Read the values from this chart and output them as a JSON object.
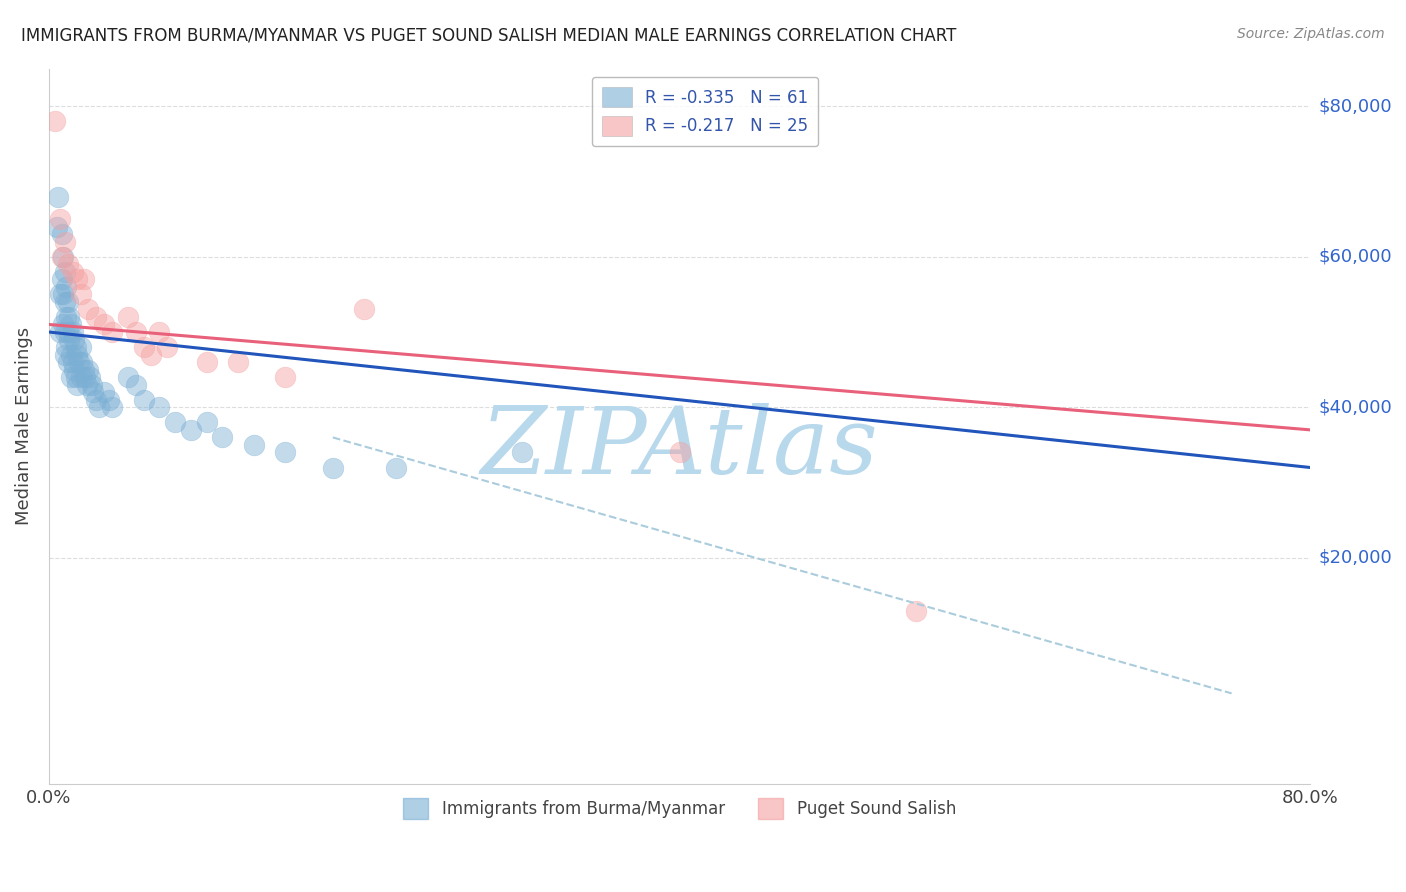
{
  "title": "IMMIGRANTS FROM BURMA/MYANMAR VS PUGET SOUND SALISH MEDIAN MALE EARNINGS CORRELATION CHART",
  "source": "Source: ZipAtlas.com",
  "ylabel": "Median Male Earnings",
  "y_tick_labels": [
    "$20,000",
    "$40,000",
    "$60,000",
    "$80,000"
  ],
  "y_tick_values": [
    20000,
    40000,
    60000,
    80000
  ],
  "x_tick_values": [
    0.0,
    0.1,
    0.2,
    0.3,
    0.4,
    0.5,
    0.6,
    0.7,
    0.8
  ],
  "ylim": [
    -10000,
    85000
  ],
  "xlim": [
    0.0,
    0.8
  ],
  "legend_blue_label": "Immigrants from Burma/Myanmar",
  "legend_pink_label": "Puget Sound Salish",
  "blue_color": "#7BAFD4",
  "pink_color": "#F4A0A0",
  "trend_blue_color": "#2255BB",
  "trend_pink_color": "#E8607A",
  "trend_dashed_color": "#AACCDD",
  "watermark_text": "ZIPAtlas",
  "watermark_color": "#B8D8EC",
  "blue_scatter_x": [
    0.005,
    0.006,
    0.007,
    0.007,
    0.008,
    0.008,
    0.009,
    0.009,
    0.009,
    0.01,
    0.01,
    0.01,
    0.01,
    0.011,
    0.011,
    0.011,
    0.012,
    0.012,
    0.012,
    0.013,
    0.013,
    0.014,
    0.014,
    0.014,
    0.015,
    0.015,
    0.016,
    0.016,
    0.017,
    0.017,
    0.018,
    0.018,
    0.019,
    0.02,
    0.02,
    0.021,
    0.022,
    0.023,
    0.024,
    0.025,
    0.026,
    0.027,
    0.028,
    0.03,
    0.032,
    0.035,
    0.038,
    0.04,
    0.05,
    0.055,
    0.06,
    0.07,
    0.08,
    0.09,
    0.1,
    0.11,
    0.13,
    0.15,
    0.18,
    0.22,
    0.3
  ],
  "blue_scatter_y": [
    64000,
    68000,
    55000,
    50000,
    63000,
    57000,
    60000,
    55000,
    51000,
    58000,
    54000,
    50000,
    47000,
    56000,
    52000,
    48000,
    54000,
    50000,
    46000,
    52000,
    49000,
    51000,
    47000,
    44000,
    50000,
    46000,
    49000,
    45000,
    48000,
    44000,
    47000,
    43000,
    46000,
    48000,
    44000,
    46000,
    45000,
    44000,
    43000,
    45000,
    44000,
    43000,
    42000,
    41000,
    40000,
    42000,
    41000,
    40000,
    44000,
    43000,
    41000,
    40000,
    38000,
    37000,
    38000,
    36000,
    35000,
    34000,
    32000,
    32000,
    34000
  ],
  "pink_scatter_x": [
    0.004,
    0.007,
    0.008,
    0.01,
    0.012,
    0.015,
    0.018,
    0.02,
    0.022,
    0.025,
    0.03,
    0.035,
    0.04,
    0.05,
    0.055,
    0.06,
    0.065,
    0.07,
    0.075,
    0.4,
    0.55,
    0.1,
    0.12,
    0.15,
    0.2
  ],
  "pink_scatter_y": [
    78000,
    65000,
    60000,
    62000,
    59000,
    58000,
    57000,
    55000,
    57000,
    53000,
    52000,
    51000,
    50000,
    52000,
    50000,
    48000,
    47000,
    50000,
    48000,
    34000,
    13000,
    46000,
    46000,
    44000,
    53000
  ],
  "blue_trend_x": [
    0.0,
    0.8
  ],
  "blue_trend_y": [
    50000,
    32000
  ],
  "pink_trend_x": [
    0.0,
    0.8
  ],
  "pink_trend_y": [
    51000,
    37000
  ],
  "dashed_trend_x": [
    0.18,
    0.75
  ],
  "dashed_trend_y": [
    36000,
    2000
  ],
  "grid_color": "#DDDDDD",
  "spine_color": "#CCCCCC"
}
